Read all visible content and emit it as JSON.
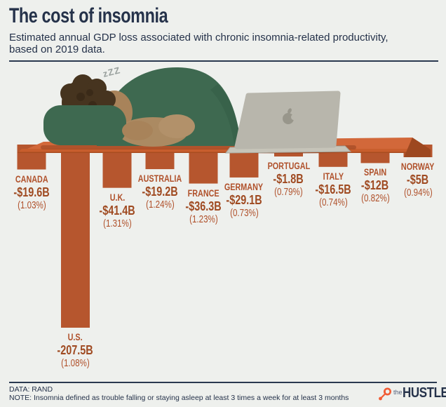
{
  "header": {
    "title": "The cost of insomnia",
    "subtitle_line1": "Estimated annual GDP loss associated with chronic insomnia-related productivity,",
    "subtitle_line2": "based on 2019 data."
  },
  "illustration": {
    "sleep_text": "zZZ"
  },
  "footer": {
    "data_source": "DATA: RAND",
    "note": "NOTE: Insomnia defined as trouble falling or staying asleep at least 3 times a week for at least 3 months",
    "brand_prefix": "the",
    "brand_name": "HUSTLE"
  },
  "colors": {
    "background": "#eef0ed",
    "navy": "#25324a",
    "accent_rust": "#b0512b",
    "value_rust": "#9f4a21",
    "bar": "#b6562e",
    "table_top": "#d2683a",
    "table_lip": "#c85e2d",
    "table_side": "#9d4820",
    "hubspot_orange": "#f15c35"
  },
  "chart_data": {
    "type": "bar",
    "orientation": "hanging-bars-below-table",
    "title": "The cost of insomnia",
    "subtitle": "Estimated annual GDP loss associated with chronic insomnia-related productivity, based on 2019 data.",
    "unit": "USD billions (annual GDP loss)",
    "source": "RAND",
    "categories": [
      "CANADA",
      "U.S.",
      "U.K.",
      "AUSTRALIA",
      "FRANCE",
      "GERMANY",
      "PORTUGAL",
      "ITALY",
      "SPAIN",
      "NORWAY"
    ],
    "values_billions": [
      -19.6,
      -207.5,
      -41.4,
      -19.2,
      -36.3,
      -29.1,
      -1.8,
      -16.5,
      -12,
      -5
    ],
    "pct_of_gdp": [
      1.03,
      1.08,
      1.31,
      1.24,
      1.23,
      0.73,
      0.79,
      0.74,
      0.82,
      0.94
    ],
    "countries": [
      {
        "name": "CANADA",
        "billions": -19.6,
        "value_label": "-$19.6B",
        "pct_label": "(1.03%)"
      },
      {
        "name": "U.S.",
        "billions": -207.5,
        "value_label": "-207.5B",
        "pct_label": "(1.08%)"
      },
      {
        "name": "U.K.",
        "billions": -41.4,
        "value_label": "-$41.4B",
        "pct_label": "(1.31%)"
      },
      {
        "name": "AUSTRALIA",
        "billions": -19.2,
        "value_label": "-$19.2B",
        "pct_label": "(1.24%)"
      },
      {
        "name": "FRANCE",
        "billions": -36.3,
        "value_label": "-$36.3B",
        "pct_label": "(1.23%)"
      },
      {
        "name": "GERMANY",
        "billions": -29.1,
        "value_label": "-$29.1B",
        "pct_label": "(0.73%)"
      },
      {
        "name": "PORTUGAL",
        "billions": -1.8,
        "value_label": "-$1.8B",
        "pct_label": "(0.79%)"
      },
      {
        "name": "ITALY",
        "billions": -16.5,
        "value_label": "-$16.5B",
        "pct_label": "(0.74%)"
      },
      {
        "name": "SPAIN",
        "billions": -12,
        "value_label": "-$12B",
        "pct_label": "(0.82%)"
      },
      {
        "name": "NORWAY",
        "billions": -5,
        "value_label": "-$5B",
        "pct_label": "(0.94%)"
      }
    ]
  }
}
